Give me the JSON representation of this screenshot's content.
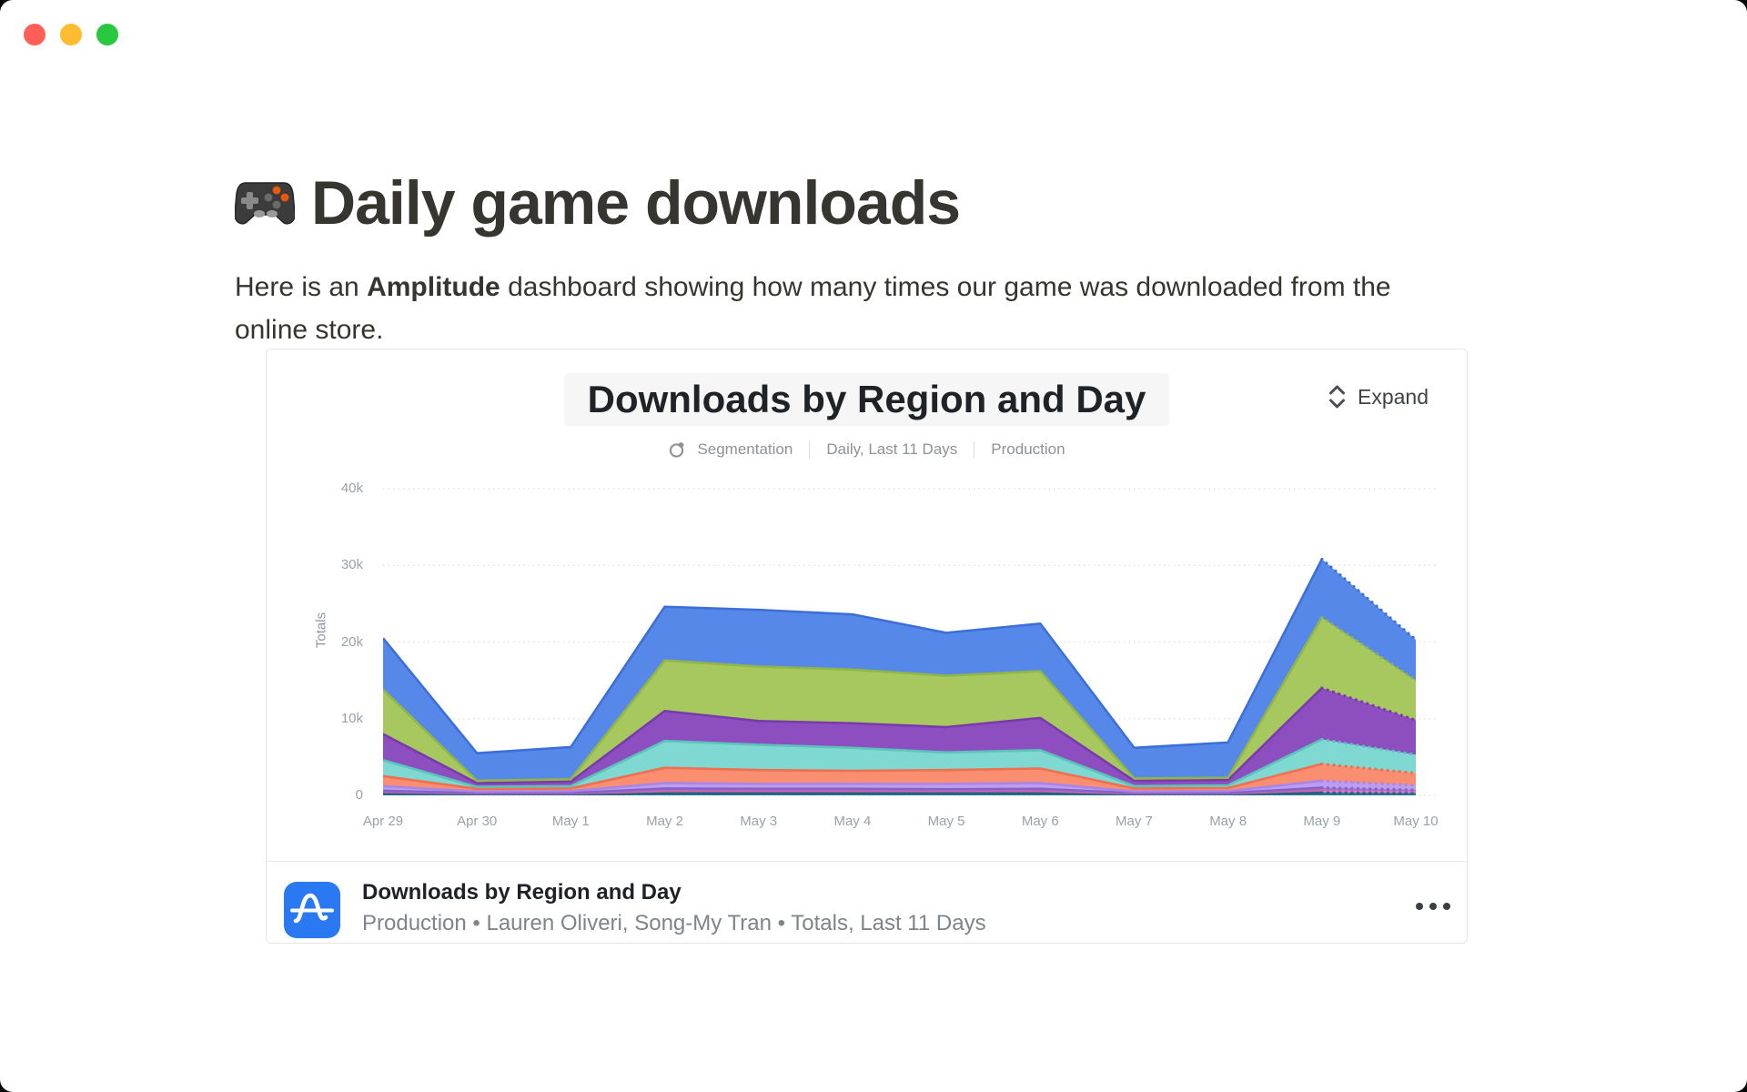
{
  "window": {
    "controls": [
      {
        "name": "close",
        "color": "#ff5f57"
      },
      {
        "name": "minimize",
        "color": "#febc2e"
      },
      {
        "name": "zoom",
        "color": "#28c840"
      }
    ]
  },
  "page": {
    "title": "Daily game downloads",
    "title_emoji": "gamepad",
    "intro": {
      "line1_prefix": "Here is an ",
      "line1_bold": "Amplitude",
      "line1_rest": " dashboard showing how many times our game was downloaded from the",
      "line2": "online store."
    }
  },
  "card": {
    "expand_label": "Expand",
    "expand_icon": "chevron-expand-vertical",
    "header": {
      "title": "Downloads by Region and Day",
      "chart_type_icon": "segmentation-ring-dot",
      "chart_type": "Segmentation",
      "range": "Daily, Last 11 Days",
      "environment": "Production"
    },
    "footer": {
      "logo_icon": "amplitude-a-wave",
      "logo_color": "#2a79f2",
      "title": "Downloads by Region and Day",
      "meta": "Production • Lauren Oliveri, Song-My Tran • Totals, Last 11 Days",
      "more_icon": "ellipsis-horizontal"
    }
  },
  "chart_data": {
    "type": "area",
    "stacked": true,
    "title": "Downloads by Region and Day",
    "xlabel": "",
    "ylabel": "Totals",
    "x": [
      "Apr 29",
      "Apr 30",
      "May 1",
      "May 2",
      "May 3",
      "May 4",
      "May 5",
      "May 6",
      "May 7",
      "May 8",
      "May 9",
      "May 10"
    ],
    "y_ticks": [
      "0",
      "10k",
      "20k",
      "30k",
      "40k"
    ],
    "y_tick_values": [
      0,
      10000,
      20000,
      30000,
      40000
    ],
    "ylim": [
      0,
      40000
    ],
    "grid": "horizontal dotted",
    "legend": "none",
    "note": "final segment (May 9 to May 10) drawn with dotted edges indicating incomplete period; region segment names not visible in screenshot",
    "series": [
      {
        "name": "segment-1-dark-teal",
        "color": "#2e7396",
        "edge": "#1f5f80",
        "values": [
          250,
          150,
          150,
          300,
          300,
          300,
          300,
          300,
          150,
          150,
          350,
          300
        ]
      },
      {
        "name": "segment-2-pink",
        "color": "#dd7fc4",
        "edge": "#c964ad",
        "values": [
          200,
          100,
          100,
          250,
          250,
          250,
          250,
          250,
          100,
          100,
          300,
          250
        ]
      },
      {
        "name": "segment-3-violet",
        "color": "#9877db",
        "edge": "#8463c9",
        "values": [
          150,
          50,
          50,
          350,
          300,
          300,
          250,
          300,
          50,
          50,
          350,
          150
        ]
      },
      {
        "name": "segment-4-lavender",
        "color": "#bd9df1",
        "edge": "#a786e7",
        "values": [
          600,
          200,
          250,
          700,
          650,
          650,
          700,
          750,
          200,
          250,
          900,
          600
        ]
      },
      {
        "name": "segment-5-salmon",
        "color": "#fa8e71",
        "edge": "#ef6f4e",
        "values": [
          1300,
          350,
          350,
          2000,
          1800,
          1700,
          1800,
          1900,
          400,
          400,
          2200,
          1600
        ]
      },
      {
        "name": "segment-6-teal",
        "color": "#7fd8d1",
        "edge": "#5ac3ba",
        "values": [
          2100,
          250,
          300,
          3500,
          3300,
          3000,
          2300,
          2400,
          300,
          350,
          3200,
          2400
        ]
      },
      {
        "name": "segment-7-purple",
        "color": "#8d4ec0",
        "edge": "#7a3aae",
        "values": [
          3400,
          500,
          600,
          3900,
          3100,
          3200,
          3300,
          4200,
          700,
          700,
          6700,
          4500
        ]
      },
      {
        "name": "segment-8-green",
        "color": "#a7c75f",
        "edge": "#92b643",
        "values": [
          5800,
          300,
          300,
          6600,
          7100,
          7000,
          6700,
          6100,
          300,
          300,
          9200,
          5200
        ]
      },
      {
        "name": "segment-9-blue",
        "color": "#5588e8",
        "edge": "#3d6fd8",
        "values": [
          6700,
          3600,
          4200,
          7000,
          7400,
          7200,
          5600,
          6200,
          4000,
          4600,
          7600,
          5300
        ]
      }
    ]
  }
}
